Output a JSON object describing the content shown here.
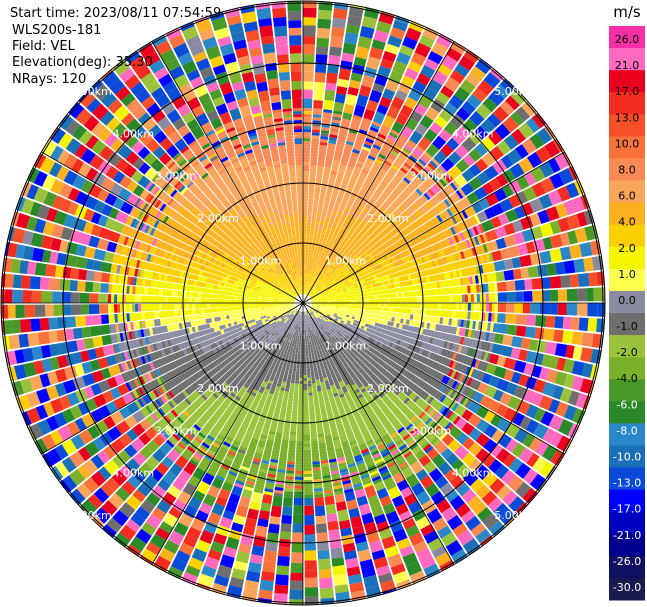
{
  "header": {
    "start_time": "Start time: 2023/08/11 07:54:59",
    "instrument": "WLS200s-181",
    "field": "Field: VEL",
    "elevation": "Elevation(deg): 35.30",
    "nrays": "NRays: 120"
  },
  "colorbar": {
    "unit": "m/s",
    "ticks": [
      "26.0",
      "21.0",
      "17.0",
      "13.0",
      "10.0",
      "8.0",
      "6.0",
      "4.0",
      "2.0",
      "1.0",
      "0.0",
      "-1.0",
      "-2.0",
      "-4.0",
      "-6.0",
      "-8.0",
      "-10.0",
      "-13.0",
      "-17.0",
      "-21.0",
      "-26.0",
      "-30.0"
    ],
    "colors": [
      "#f72fa4",
      "#ff69c0",
      "#e8001e",
      "#f22d20",
      "#f5502a",
      "#f7733a",
      "#f98a55",
      "#f9a55a",
      "#fbb21e",
      "#fcd000",
      "#f5f500",
      "#ffff50",
      "#8a8aa0",
      "#6e6e6e",
      "#9ac23a",
      "#7ab02a",
      "#4a9a2a",
      "#2a8a2a",
      "#2a88c8",
      "#1a70b8",
      "#0a4ad8",
      "#0000ff",
      "#0000c0",
      "#000090",
      "#101060",
      "#1a1a50"
    ]
  },
  "range_rings": {
    "labels": [
      "1.00km",
      "2.00km",
      "3.00km",
      "4.00km",
      "5.00km"
    ]
  },
  "chart_data": {
    "type": "heatmap",
    "subtype": "polar-ppi",
    "field": "VEL",
    "unit": "m/s",
    "n_rays": 120,
    "elevation_deg": 35.3,
    "range_km": [
      0,
      6
    ],
    "range_rings_km": [
      1,
      2,
      3,
      4,
      5
    ],
    "color_levels": [
      -30,
      -26,
      -21,
      -17,
      -13,
      -10,
      -8,
      -6,
      -4,
      -2,
      -1,
      0,
      1,
      2,
      4,
      6,
      8,
      10,
      13,
      17,
      21,
      26
    ],
    "pattern": {
      "north_sector": "positive velocities 1 to 8 m/s, increasing with range",
      "south_sector": "negative velocities -1 to -8 m/s, decreasing with range",
      "near_zero_band": "0 to 1 m/s along east-west line",
      "beyond_km": 3.2,
      "beyond_note": "noise, random values across full scale"
    },
    "grid": true
  }
}
